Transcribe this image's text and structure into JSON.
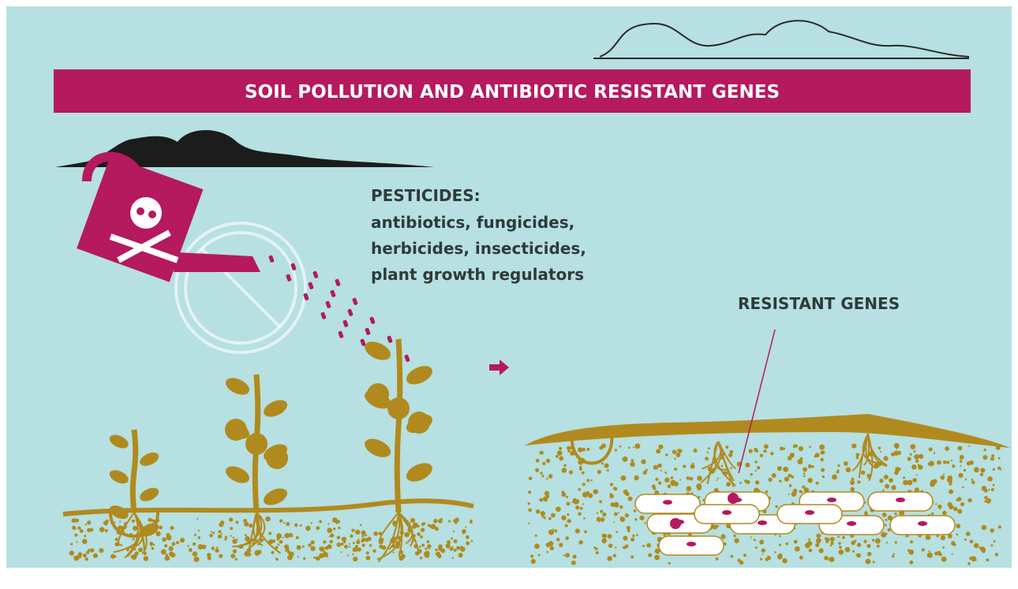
{
  "title": "SOIL POLLUTION AND ANTIBIOTIC RESISTANT GENES",
  "pesticides": {
    "heading": "PESTICIDES:",
    "items": [
      "antibiotics, fungicides,",
      "herbicides, insecticides,",
      "plant growth regulators"
    ]
  },
  "resistant_label": "RESISTANT GENES"
}
